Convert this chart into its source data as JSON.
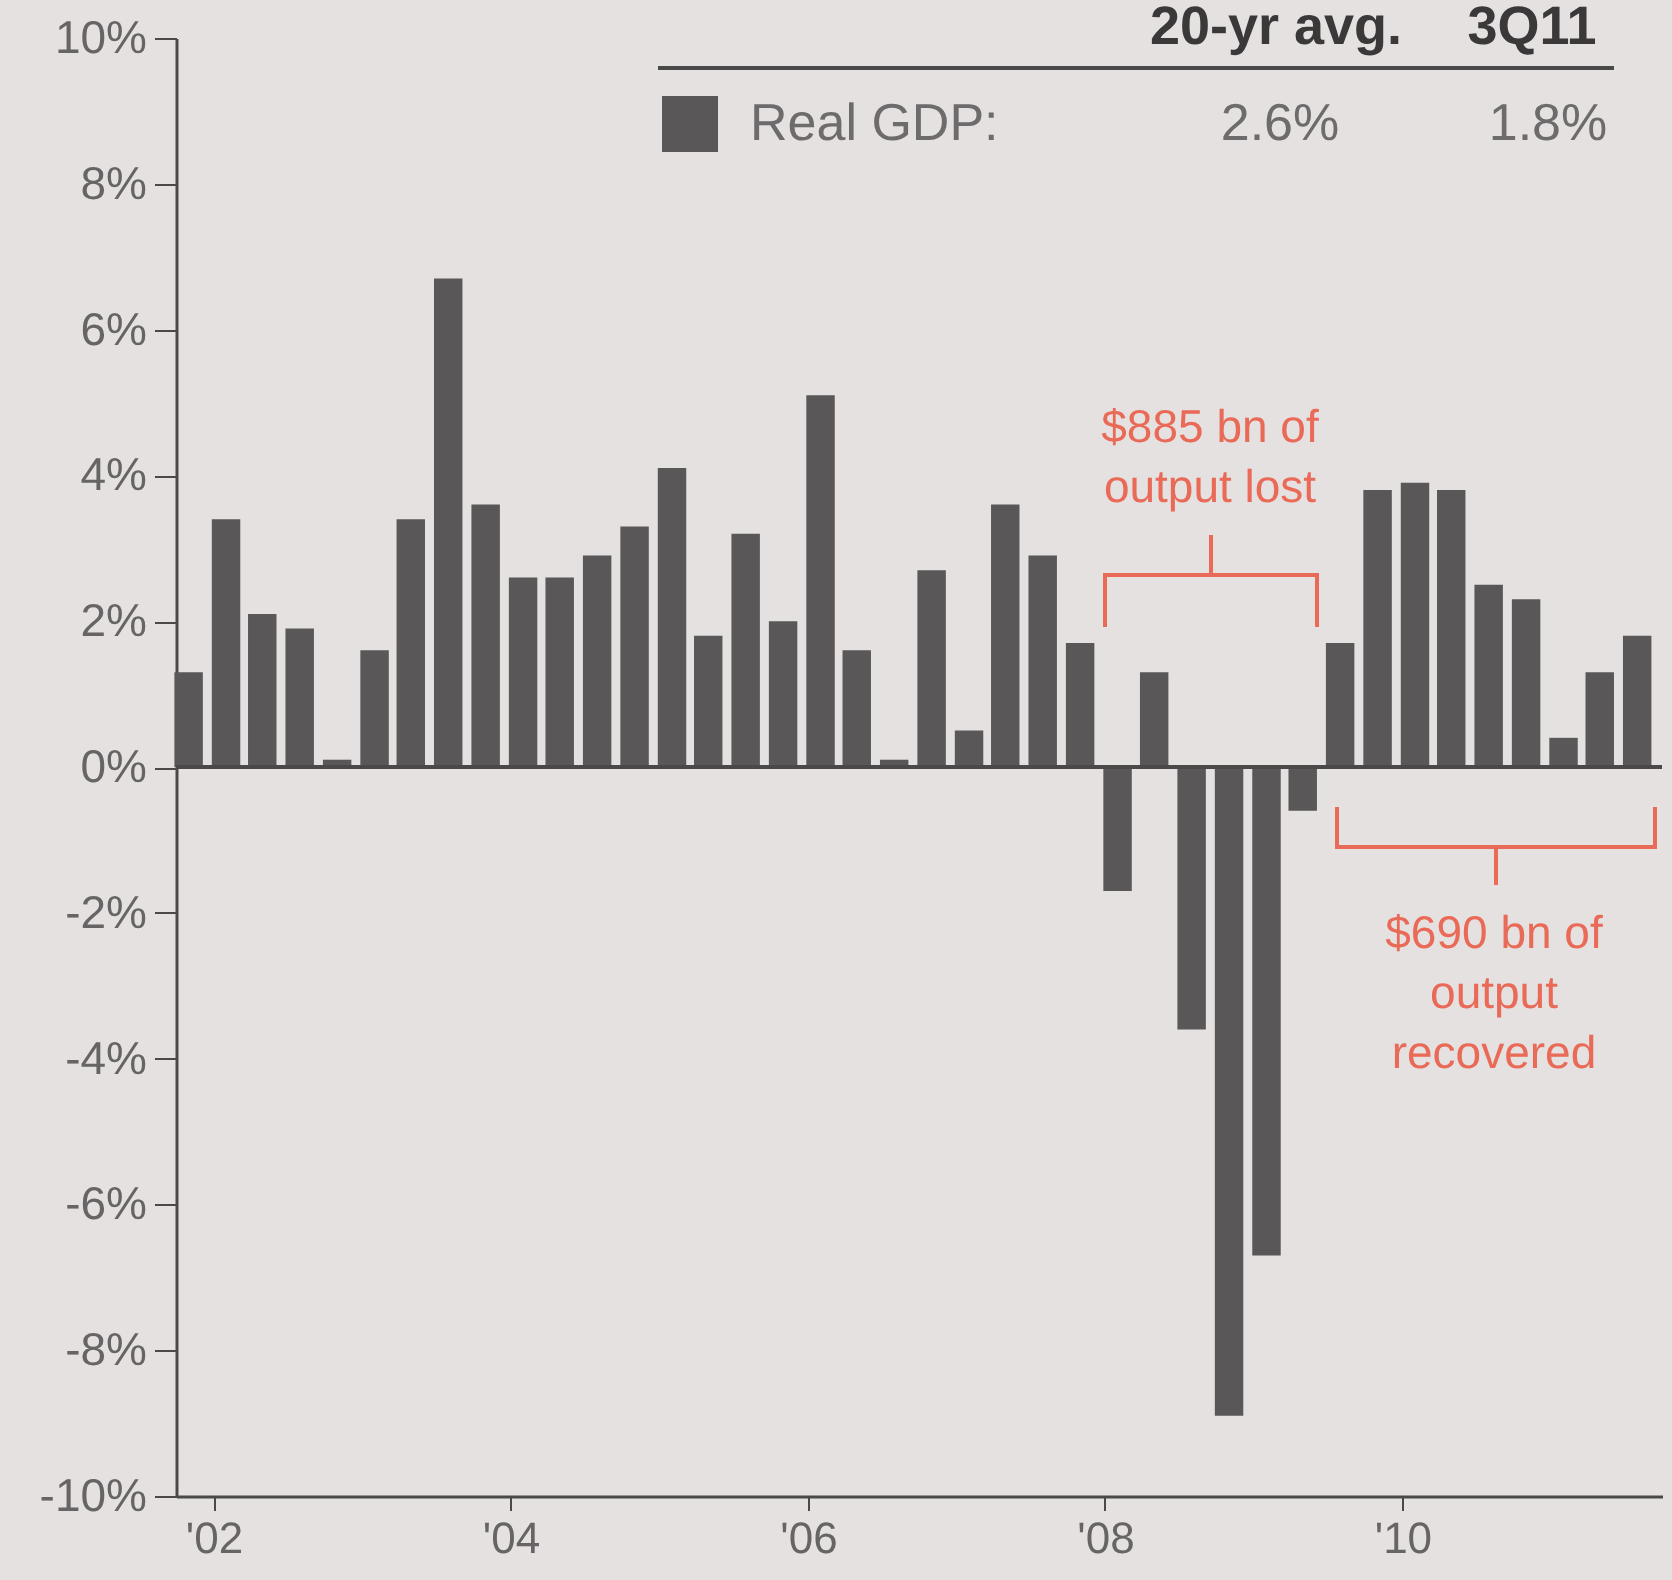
{
  "chart_data": {
    "type": "bar",
    "x": [
      "2001-11",
      "2002-02",
      "2002-05",
      "2002-08",
      "2002-11",
      "2003-02",
      "2003-05",
      "2003-08",
      "2003-11",
      "2004-02",
      "2004-05",
      "2004-08",
      "2004-11",
      "2005-02",
      "2005-05",
      "2005-08",
      "2005-11",
      "2006-02",
      "2006-05",
      "2006-08",
      "2006-11",
      "2007-02",
      "2007-05",
      "2007-08",
      "2007-11",
      "2008-02",
      "2008-05",
      "2008-08",
      "2008-11",
      "2009-02",
      "2009-05",
      "2009-08",
      "2009-11",
      "2010-02",
      "2010-05",
      "2010-08",
      "2010-11",
      "2011-02",
      "2011-05",
      "2011-08"
    ],
    "series": [
      {
        "name": "Real GDP:",
        "color": "#595757",
        "values": [
          1.3,
          3.4,
          2.1,
          1.9,
          0.1,
          1.6,
          3.4,
          6.7,
          3.6,
          2.6,
          2.6,
          2.9,
          3.3,
          4.1,
          1.8,
          3.2,
          2.0,
          5.1,
          1.6,
          0.1,
          2.7,
          0.5,
          3.6,
          2.9,
          1.7,
          -1.7,
          1.3,
          -3.6,
          -8.9,
          -6.7,
          -0.6,
          1.7,
          3.8,
          3.9,
          3.8,
          2.5,
          2.3,
          0.4,
          1.3,
          1.8
        ]
      }
    ],
    "xlim": [
      "2001-10",
      "2011-10"
    ],
    "xticks": [
      {
        "value": "2002",
        "label": "'02"
      },
      {
        "value": "2004",
        "label": "'04"
      },
      {
        "value": "2006",
        "label": "'06"
      },
      {
        "value": "2008",
        "label": "'08"
      },
      {
        "value": "2010",
        "label": "'10"
      }
    ],
    "ylim": [
      -10,
      10
    ],
    "yticks": [
      {
        "value": 10,
        "label": "10%"
      },
      {
        "value": 8,
        "label": "8%"
      },
      {
        "value": 6,
        "label": "6%"
      },
      {
        "value": 4,
        "label": "4%"
      },
      {
        "value": 2,
        "label": "2%"
      },
      {
        "value": 0,
        "label": "0%"
      },
      {
        "value": -2,
        "label": "-2%"
      },
      {
        "value": -4,
        "label": "-4%"
      },
      {
        "value": -6,
        "label": "-6%"
      },
      {
        "value": -8,
        "label": "-8%"
      },
      {
        "value": -10,
        "label": "-10%"
      }
    ],
    "ref_lines": [
      {
        "axis": "y",
        "value": 0,
        "color": "#4a4848"
      }
    ],
    "legend": "top",
    "annotations": [
      "20-yr avg.",
      "3Q11",
      "2.6%",
      "1.8%",
      "$885 bn of output lost",
      "$690 bn of output recovered"
    ]
  }
}
